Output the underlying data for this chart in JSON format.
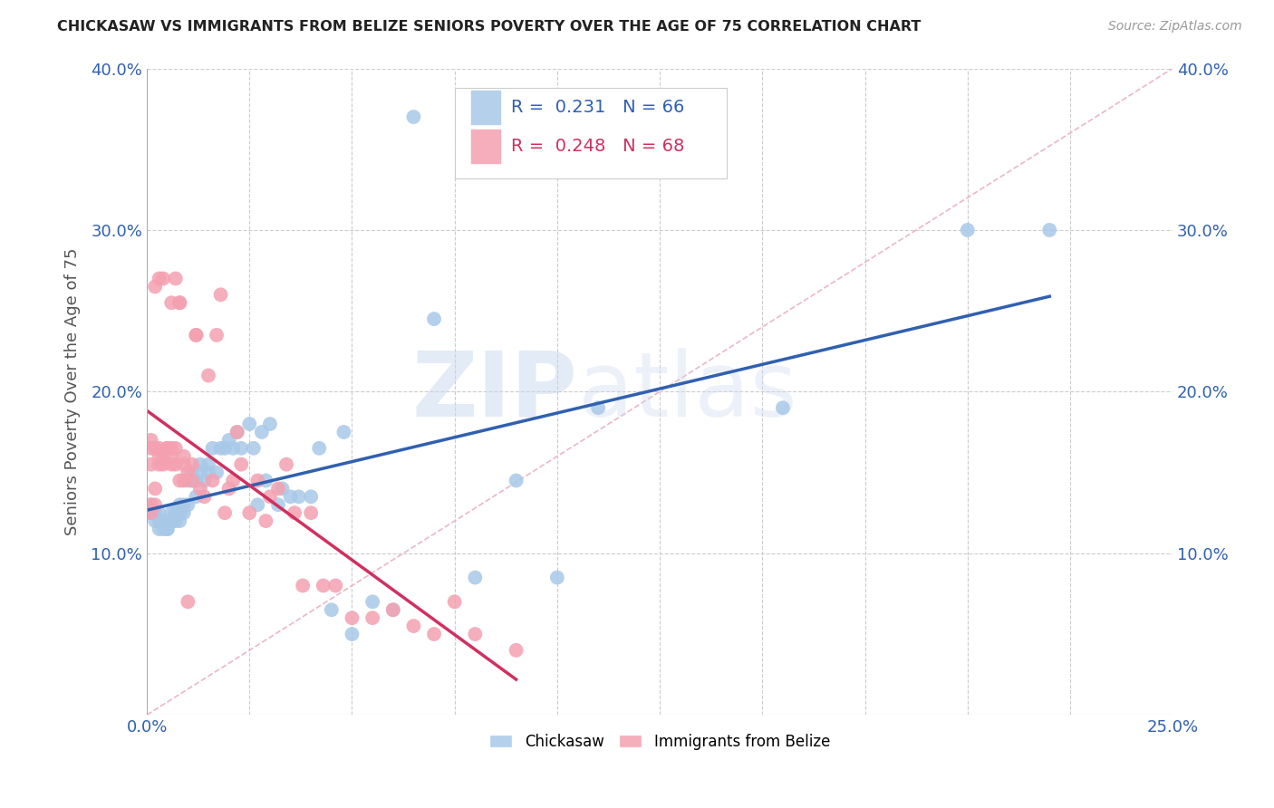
{
  "title": "CHICKASAW VS IMMIGRANTS FROM BELIZE SENIORS POVERTY OVER THE AGE OF 75 CORRELATION CHART",
  "source_text": "Source: ZipAtlas.com",
  "ylabel": "Seniors Poverty Over the Age of 75",
  "xlim": [
    0.0,
    0.25
  ],
  "ylim": [
    0.0,
    0.4
  ],
  "xticks": [
    0.0,
    0.025,
    0.05,
    0.075,
    0.1,
    0.125,
    0.15,
    0.175,
    0.2,
    0.225,
    0.25
  ],
  "xticklabels": [
    "0.0%",
    "",
    "",
    "",
    "",
    "",
    "",
    "",
    "",
    "",
    "25.0%"
  ],
  "yticks": [
    0.0,
    0.1,
    0.2,
    0.3,
    0.4
  ],
  "yticklabels": [
    "",
    "10.0%",
    "20.0%",
    "30.0%",
    "40.0%"
  ],
  "chickasaw_R": 0.231,
  "chickasaw_N": 66,
  "belize_R": 0.248,
  "belize_N": 68,
  "chickasaw_color": "#a8c8e8",
  "belize_color": "#f4a0b0",
  "chickasaw_line_color": "#3060b0",
  "belize_line_color": "#d03060",
  "ref_line_color": "#e8b0c0",
  "grid_color": "#cccccc",
  "watermark_text": "ZIPatlas",
  "background_color": "#ffffff",
  "chickasaw_x": [
    0.001,
    0.001,
    0.002,
    0.002,
    0.003,
    0.003,
    0.003,
    0.004,
    0.004,
    0.005,
    0.005,
    0.005,
    0.006,
    0.006,
    0.007,
    0.007,
    0.008,
    0.008,
    0.008,
    0.009,
    0.009,
    0.01,
    0.01,
    0.011,
    0.011,
    0.012,
    0.012,
    0.013,
    0.013,
    0.014,
    0.015,
    0.015,
    0.016,
    0.017,
    0.018,
    0.019,
    0.02,
    0.021,
    0.022,
    0.023,
    0.025,
    0.026,
    0.027,
    0.028,
    0.029,
    0.03,
    0.032,
    0.033,
    0.035,
    0.037,
    0.04,
    0.042,
    0.045,
    0.048,
    0.05,
    0.055,
    0.06,
    0.065,
    0.07,
    0.08,
    0.09,
    0.1,
    0.11,
    0.155,
    0.2,
    0.22
  ],
  "chickasaw_y": [
    0.13,
    0.125,
    0.125,
    0.12,
    0.125,
    0.12,
    0.115,
    0.12,
    0.115,
    0.12,
    0.115,
    0.115,
    0.125,
    0.12,
    0.12,
    0.125,
    0.125,
    0.13,
    0.12,
    0.13,
    0.125,
    0.145,
    0.13,
    0.15,
    0.145,
    0.135,
    0.145,
    0.155,
    0.15,
    0.145,
    0.155,
    0.15,
    0.165,
    0.15,
    0.165,
    0.165,
    0.17,
    0.165,
    0.175,
    0.165,
    0.18,
    0.165,
    0.13,
    0.175,
    0.145,
    0.18,
    0.13,
    0.14,
    0.135,
    0.135,
    0.135,
    0.165,
    0.065,
    0.175,
    0.05,
    0.07,
    0.065,
    0.37,
    0.245,
    0.085,
    0.145,
    0.085,
    0.19,
    0.19,
    0.3,
    0.3
  ],
  "belize_x": [
    0.001,
    0.001,
    0.001,
    0.001,
    0.001,
    0.002,
    0.002,
    0.002,
    0.002,
    0.003,
    0.003,
    0.003,
    0.003,
    0.004,
    0.004,
    0.004,
    0.005,
    0.005,
    0.005,
    0.006,
    0.006,
    0.006,
    0.006,
    0.007,
    0.007,
    0.007,
    0.008,
    0.008,
    0.008,
    0.009,
    0.009,
    0.009,
    0.01,
    0.01,
    0.011,
    0.011,
    0.012,
    0.012,
    0.013,
    0.014,
    0.015,
    0.016,
    0.017,
    0.018,
    0.019,
    0.02,
    0.021,
    0.022,
    0.023,
    0.025,
    0.027,
    0.029,
    0.03,
    0.032,
    0.034,
    0.036,
    0.038,
    0.04,
    0.043,
    0.046,
    0.05,
    0.055,
    0.06,
    0.065,
    0.07,
    0.075,
    0.08,
    0.09
  ],
  "belize_y": [
    0.13,
    0.125,
    0.155,
    0.165,
    0.17,
    0.14,
    0.13,
    0.165,
    0.265,
    0.16,
    0.155,
    0.165,
    0.27,
    0.155,
    0.16,
    0.27,
    0.165,
    0.165,
    0.165,
    0.155,
    0.16,
    0.165,
    0.255,
    0.155,
    0.165,
    0.27,
    0.145,
    0.255,
    0.255,
    0.145,
    0.16,
    0.155,
    0.07,
    0.15,
    0.145,
    0.155,
    0.235,
    0.235,
    0.14,
    0.135,
    0.21,
    0.145,
    0.235,
    0.26,
    0.125,
    0.14,
    0.145,
    0.175,
    0.155,
    0.125,
    0.145,
    0.12,
    0.135,
    0.14,
    0.155,
    0.125,
    0.08,
    0.125,
    0.08,
    0.08,
    0.06,
    0.06,
    0.065,
    0.055,
    0.05,
    0.07,
    0.05,
    0.04
  ]
}
